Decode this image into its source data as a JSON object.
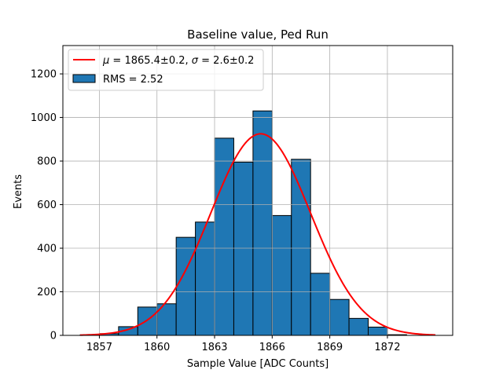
{
  "chart_data": {
    "type": "bar",
    "title": "Baseline value, Ped Run",
    "xlabel": "Sample Value [ADC Counts]",
    "ylabel": "Events",
    "xlim": [
      1855.1,
      1875.4
    ],
    "ylim": [
      0,
      1330
    ],
    "xticks": [
      1857,
      1860,
      1863,
      1866,
      1869,
      1872
    ],
    "yticks": [
      0,
      200,
      400,
      600,
      800,
      1000,
      1200
    ],
    "grid": true,
    "legend_position": "top-left",
    "histogram": {
      "name": "RMS = 2.52",
      "color": "#1f77b4",
      "edge_color": "#000000",
      "bin_edges": [
        1856,
        1857,
        1858,
        1859,
        1860,
        1861,
        1862,
        1863,
        1864,
        1865,
        1866,
        1867,
        1868,
        1869,
        1870,
        1871,
        1872,
        1873
      ],
      "values": [
        2,
        8,
        40,
        130,
        145,
        450,
        520,
        905,
        795,
        1030,
        550,
        808,
        285,
        165,
        78,
        38,
        3
      ]
    },
    "fit": {
      "name": "μ = 1865.4±0.2, σ = 2.6±0.2",
      "name_mu": "μ",
      "name_mu_value": " = 1865.4±0.2, ",
      "name_sigma": "σ",
      "name_sigma_value": " = 2.6±0.2",
      "type": "gaussian",
      "mu": 1865.4,
      "sigma": 2.6,
      "amplitude": 925,
      "x_range": [
        1856,
        1874.5
      ],
      "color": "#ff0000"
    }
  }
}
